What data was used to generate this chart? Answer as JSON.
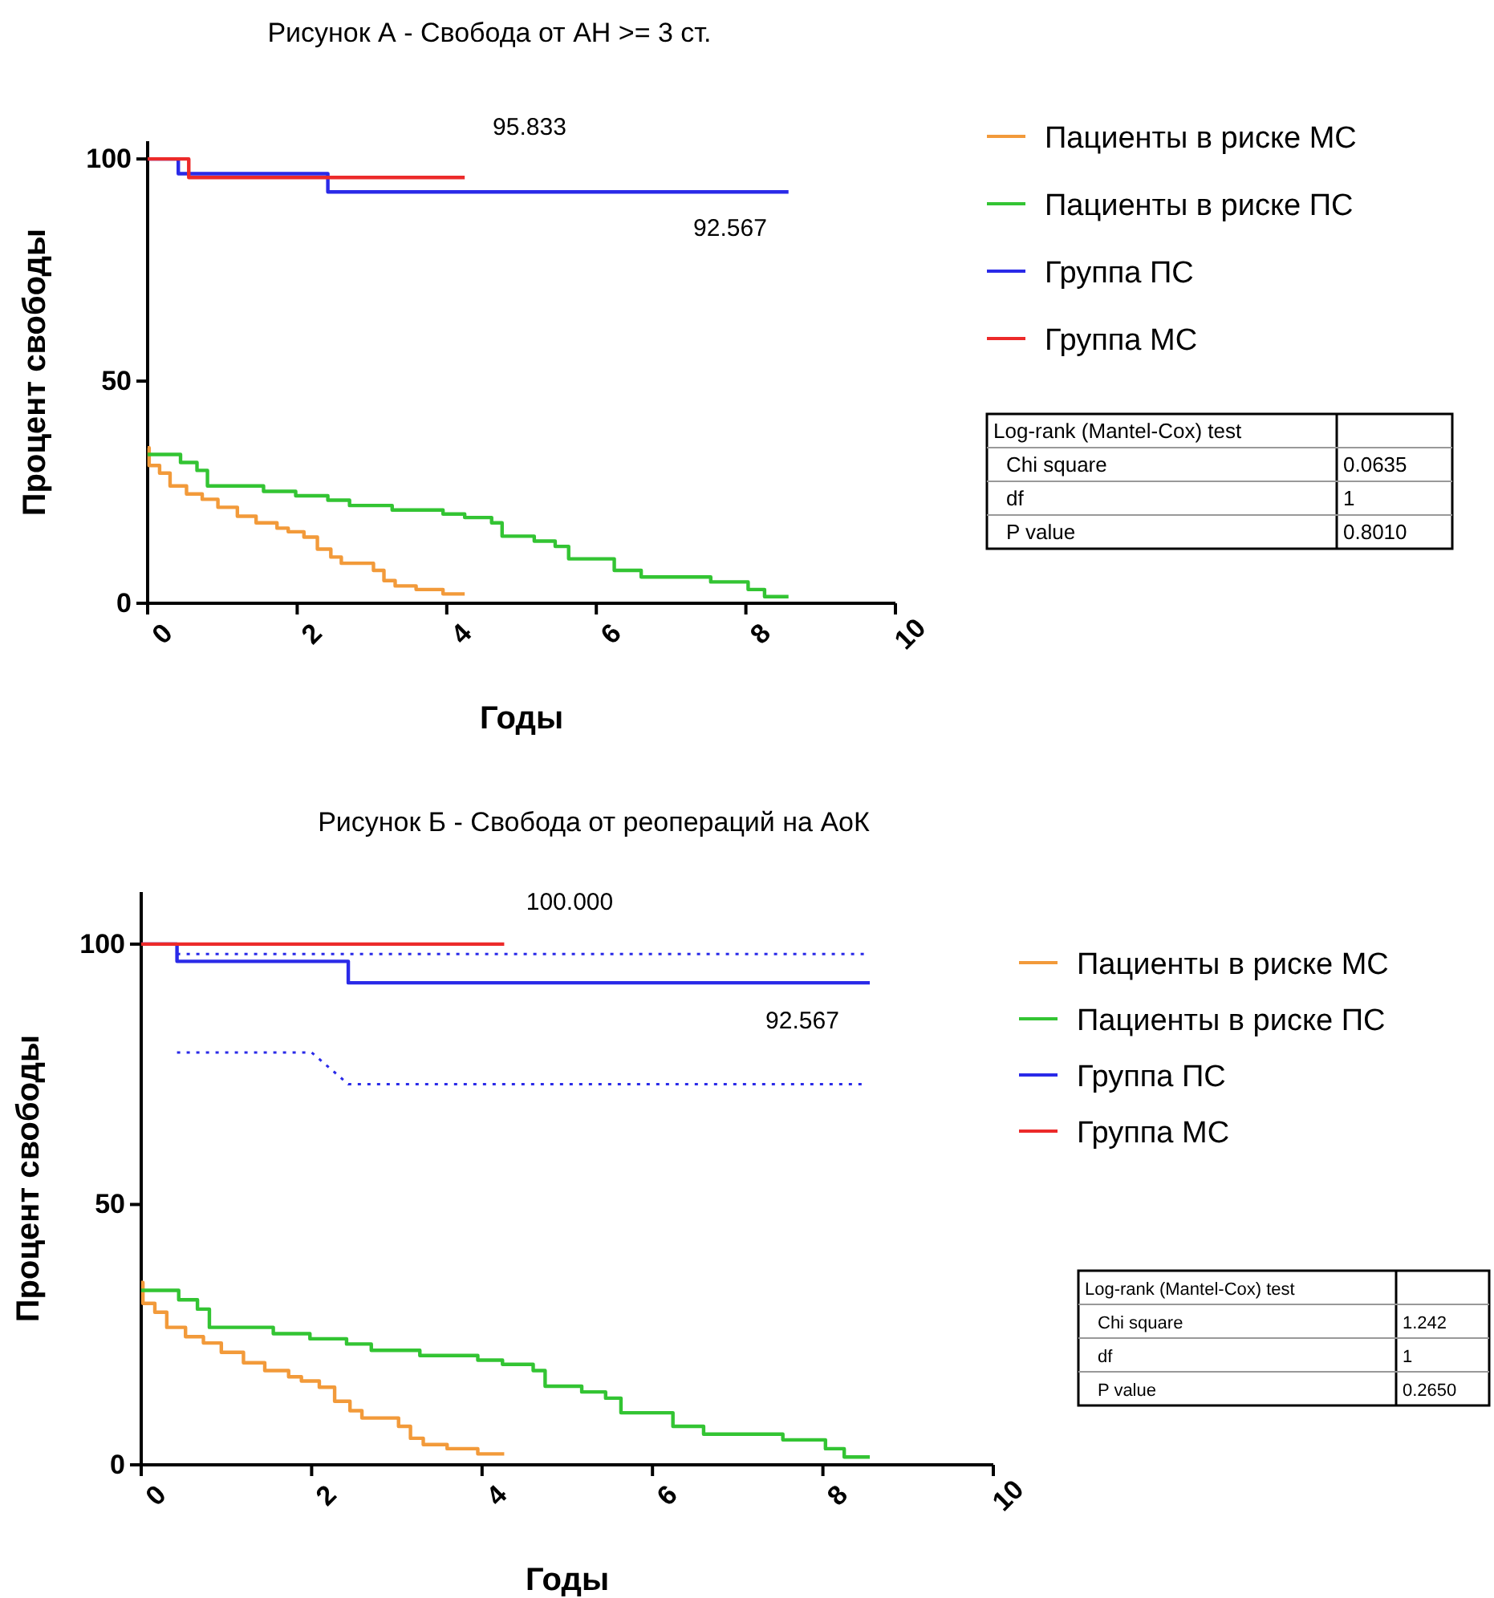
{
  "chart_data": [
    {
      "type": "step",
      "title": "Рисунок А - Свобода от АН >= 3 ст.",
      "xlabel": "Годы",
      "ylabel": "Процент свободы",
      "xlim": [
        0,
        10
      ],
      "xticks": [
        0,
        2,
        4,
        6,
        8,
        10
      ],
      "ylim": [
        0,
        104
      ],
      "yticks": [
        0,
        50,
        100
      ],
      "grid": false,
      "legend": "right",
      "line_style": "solid",
      "series": [
        {
          "name": "Пациенты в риске МС",
          "color": "#f29a3a",
          "x": [
            0,
            0.02,
            0.16,
            0.3,
            0.52,
            0.73,
            0.94,
            1.2,
            1.45,
            1.73,
            1.88,
            2.09,
            2.27,
            2.45,
            2.59,
            3.02,
            3.16,
            3.31,
            3.59,
            3.95,
            4.24
          ],
          "values": [
            35,
            31,
            29.3,
            26.4,
            24.6,
            23.4,
            21.6,
            19.6,
            18.1,
            16.9,
            16.1,
            14.9,
            12.2,
            10.4,
            9,
            7.4,
            5.1,
            3.9,
            3.1,
            2.1,
            2.1
          ]
        },
        {
          "name": "Пациенты в риске ПС",
          "color": "#33c433",
          "x": [
            0,
            0.44,
            0.66,
            0.8,
            1.55,
            1.98,
            2.41,
            2.7,
            3.27,
            3.95,
            4.24,
            4.6,
            4.74,
            5.17,
            5.45,
            5.63,
            6.24,
            6.6,
            7.53,
            8.03,
            8.25,
            8.57
          ],
          "values": [
            33.5,
            31.7,
            29.9,
            26.4,
            25.2,
            24.2,
            23.2,
            22,
            21,
            20.1,
            19.3,
            18.1,
            15.1,
            14,
            12.8,
            10,
            7.4,
            5.9,
            4.8,
            3.1,
            1.5,
            1.5
          ]
        },
        {
          "name": "Группа ПС",
          "color": "#2a2ae8",
          "x": [
            0,
            0.41,
            2.41,
            8.57
          ],
          "values": [
            100,
            96.7,
            92.567,
            92.567
          ]
        },
        {
          "name": "Группа МС",
          "color": "#ec2a2a",
          "x": [
            0,
            0.55,
            4.24
          ],
          "values": [
            100,
            95.833,
            95.833
          ]
        }
      ],
      "annotations": [
        "95.833",
        "92.567",
        "Log-rank (Mantel-Cox) test",
        "Chi square",
        "0.0635",
        "df",
        "1",
        "P value",
        "0.8010"
      ]
    },
    {
      "type": "step",
      "title": "Рисунок Б - Свобода от реопераций на АоК",
      "xlabel": "Годы",
      "ylabel": "Процент свободы",
      "xlim": [
        0,
        10
      ],
      "xticks": [
        0,
        2,
        4,
        6,
        8,
        10
      ],
      "ylim": [
        0,
        110
      ],
      "yticks": [
        0,
        50,
        100
      ],
      "grid": false,
      "legend": "right",
      "line_style": "solid",
      "series": [
        {
          "name": "Пациенты в риске МС",
          "color": "#f29a3a",
          "x": [
            0,
            0.02,
            0.16,
            0.3,
            0.52,
            0.73,
            0.94,
            1.2,
            1.45,
            1.73,
            1.88,
            2.09,
            2.27,
            2.45,
            2.59,
            3.02,
            3.16,
            3.31,
            3.59,
            3.95,
            4.26
          ],
          "values": [
            35,
            31,
            29.3,
            26.4,
            24.6,
            23.4,
            21.6,
            19.6,
            18.1,
            16.9,
            16.1,
            14.9,
            12.2,
            10.4,
            9,
            7.4,
            5.1,
            3.9,
            3.1,
            2.1,
            2.1
          ]
        },
        {
          "name": "Пациенты в риске ПС",
          "color": "#33c433",
          "x": [
            0,
            0.44,
            0.66,
            0.8,
            1.55,
            1.98,
            2.41,
            2.7,
            3.27,
            3.95,
            4.24,
            4.6,
            4.74,
            5.17,
            5.45,
            5.63,
            6.24,
            6.6,
            7.53,
            8.03,
            8.25,
            8.55
          ],
          "values": [
            33.5,
            31.7,
            29.9,
            26.4,
            25.2,
            24.2,
            23.2,
            22,
            21,
            20.1,
            19.3,
            18.1,
            15.1,
            14,
            12.8,
            10,
            7.4,
            5.9,
            4.8,
            3.1,
            1.5,
            1.5
          ]
        },
        {
          "name": "Группа ПС",
          "color": "#2a2ae8",
          "x": [
            0,
            0.42,
            2.43,
            8.55
          ],
          "values": [
            100,
            96.7,
            92.567,
            92.567
          ]
        },
        {
          "name": "Группа МС",
          "color": "#ec2a2a",
          "x": [
            0,
            4.26
          ],
          "values": [
            100,
            100
          ]
        },
        {
          "type": "line",
          "line_style": "dotted",
          "color": "#2a2ae8",
          "x": [
            0.42,
            8.5
          ],
          "values": [
            98.1,
            98.1
          ]
        },
        {
          "type": "line",
          "line_style": "dotted",
          "color": "#2a2ae8",
          "x": [
            0.42,
            2.0,
            2.43,
            8.5
          ],
          "values": [
            79.2,
            79.2,
            73.1,
            73.1
          ]
        }
      ],
      "annotations": [
        "100.000",
        "92.567",
        "Log-rank (Mantel-Cox) test",
        "Chi square",
        "1.242",
        "df",
        "1",
        "P value",
        "0.2650"
      ]
    }
  ]
}
